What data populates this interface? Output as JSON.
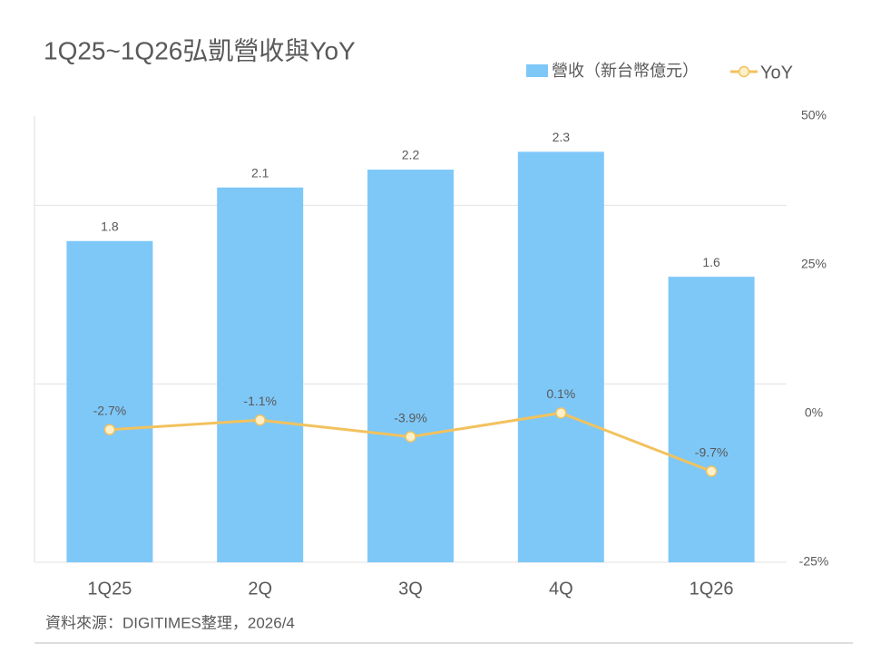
{
  "chart_data": {
    "type": "bar",
    "title": "1Q25~1Q26弘凱營收與YoY",
    "categories": [
      "1Q25",
      "2Q",
      "3Q",
      "4Q",
      "1Q26"
    ],
    "series": [
      {
        "name": "營收（新台幣億元）",
        "type": "bar",
        "color": "#7ec8f8",
        "values": [
          1.8,
          2.1,
          2.2,
          2.3,
          1.6
        ]
      },
      {
        "name": "YoY",
        "type": "line",
        "axis": "y2",
        "color": "#f2c25e",
        "values": [
          -2.7,
          -1.1,
          -3.9,
          0.1,
          -9.7
        ],
        "value_labels": [
          "-2.7%",
          "-1.1%",
          "-3.9%",
          "0.1%",
          "-9.7%"
        ]
      }
    ],
    "ylim": [
      0,
      2.5
    ],
    "yticks": [
      0,
      1,
      2
    ],
    "show_ytick_labels": false,
    "y2lim": [
      -25,
      50
    ],
    "y2ticks": [
      {
        "value": 50,
        "label": "50%"
      },
      {
        "value": 25,
        "label": "25%"
      },
      {
        "value": 0,
        "label": "0%"
      },
      {
        "value": -25,
        "label": "-25%"
      }
    ],
    "grid": true,
    "legend": "top-right",
    "source": "資料來源：DIGITIMES整理，2026/4"
  }
}
